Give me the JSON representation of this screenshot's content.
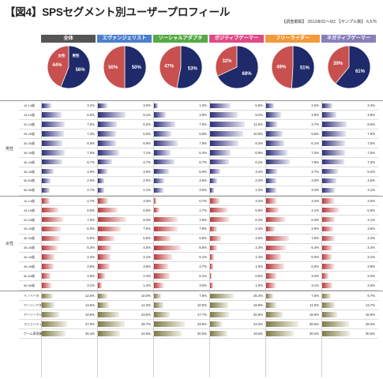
{
  "header": {
    "title": "【図4】SPSセグメント別ユーザープロフィール",
    "survey_info": "【調査期間】 2012/8/31～9/2 【サンプル数】 6,576"
  },
  "chart_data": {
    "type": "bar",
    "segments": [
      {
        "name": "全体",
        "color": "#555555",
        "bar": "#3a3a8c"
      },
      {
        "name": "エヴァンジェリスト",
        "color": "#4d7fcc",
        "bar": "#3a3a8c"
      },
      {
        "name": "ソーシャルアダプタ",
        "color": "#55aa44",
        "bar": "#3a3a8c"
      },
      {
        "name": "ポジティブゲーマー",
        "color": "#e04a86",
        "bar": "#3a3a8c"
      },
      {
        "name": "フリーライダー",
        "color": "#f29a3c",
        "bar": "#3a3a8c"
      },
      {
        "name": "ネガティブゲーマー",
        "color": "#8a7fb9",
        "bar": "#3a3a8c"
      }
    ],
    "pie_labels": {
      "female": "女性",
      "male": "男性"
    },
    "pies": [
      {
        "female": "44%",
        "male": "56%",
        "female_pct": 44
      },
      {
        "female": "50%",
        "male": "50%",
        "female_pct": 50
      },
      {
        "female": "47%",
        "male": "53%",
        "female_pct": 47
      },
      {
        "female": "32%",
        "male": "68%",
        "female_pct": 32
      },
      {
        "female": "49%",
        "male": "51%",
        "female_pct": 49
      },
      {
        "female": "39%",
        "male": "61%",
        "female_pct": 39
      }
    ],
    "groups": [
      {
        "label": "男性",
        "color_dark": "#2e2e7a",
        "color_light": "#e8e8f4",
        "scale_max": 12,
        "rows": [
          {
            "label": "10-14歳",
            "values": [
              "3.2%",
              "3.0%",
              "1.3%",
              "6.8%",
              "2.5%",
              "3.4%"
            ]
          },
          {
            "label": "15-19歳",
            "values": [
              "6.6%",
              "9.1%",
              "3.9%",
              "9.2%",
              "4.9%",
              "4.8%"
            ]
          },
          {
            "label": "20-24歳",
            "values": [
              "7.5%",
              "6.2%",
              "7.0%",
              "11.5%",
              "3.7%",
              "8.0%"
            ]
          },
          {
            "label": "25-29歳",
            "values": [
              "7.3%",
              "6.0%",
              "5.8%",
              "10.9%",
              "5.6%",
              "7.9%"
            ]
          },
          {
            "label": "30-34歳",
            "values": [
              "6.8%",
              "5.9%",
              "7.9%",
              "9.3%",
              "6.1%",
              "7.5%"
            ]
          },
          {
            "label": "35-39歳",
            "values": [
              "7.5%",
              "7.1%",
              "5.4%",
              "6.9%",
              "7.0%",
              "7.5%"
            ]
          },
          {
            "label": "40-44歳",
            "values": [
              "6.7%",
              "4.7%",
              "6.7%",
              "6.2%",
              "7.9%",
              "7.3%"
            ]
          },
          {
            "label": "45-49歳",
            "values": [
              "4.0%",
              "3.0%",
              "5.0%",
              "3.4%",
              "3.7%",
              "5.2%"
            ]
          },
          {
            "label": "50-54歳",
            "values": [
              "2.9%",
              "2.0%",
              "3.5%",
              "2.3%",
              "3.3%",
              "4.6%"
            ]
          },
          {
            "label": "55-59歳",
            "values": [
              "2.7%",
              "2.1%",
              "3.0%",
              "1.3%",
              "3.4%",
              "4.1%"
            ]
          }
        ]
      },
      {
        "label": "女性",
        "color_dark": "#b83a3a",
        "color_light": "#fbe8e8",
        "scale_max": 12,
        "rows": [
          {
            "label": "10-14歳",
            "values": [
              "2.7%",
              "3.3%",
              "0.7%",
              "3.2%",
              "3.4%",
              "4.0%"
            ]
          },
          {
            "label": "15-19歳",
            "values": [
              "5.6%",
              "6.5%",
              "1.7%",
              "5.8%",
              "4.1%",
              "5.6%"
            ]
          },
          {
            "label": "20-24歳",
            "values": [
              "7.0%",
              "9.3%",
              "7.8%",
              "6.2%",
              "6.3%",
              "4.1%"
            ]
          },
          {
            "label": "25-29歳",
            "values": [
              "6.3%",
              "7.6%",
              "7.8%",
              "2.3%",
              "2.9%",
              "3.6%"
            ]
          },
          {
            "label": "30-34歳",
            "values": [
              "5.9%",
              "5.6%",
              "5.6%",
              "3.6%",
              "7.5%",
              "4.2%"
            ]
          },
          {
            "label": "35-39歳",
            "values": [
              "5.3%",
              "4.5%",
              "8.8%",
              "2.3%",
              "6.4%",
              "3.4%"
            ]
          },
          {
            "label": "40-44歳",
            "values": [
              "4.3%",
              "4.1%",
              "6.1%",
              "1.4%",
              "5.0%",
              "3.1%"
            ]
          },
          {
            "label": "45-49歳",
            "values": [
              "3.8%",
              "3.8%",
              "4.7%",
              "1.0%",
              "6.0%",
              "3.9%"
            ]
          },
          {
            "label": "50-54歳",
            "values": [
              "2.8%",
              "2.4%",
              "5.1%",
              "0.5%",
              "3.4%",
              "2.0%"
            ]
          },
          {
            "label": "55-59歳",
            "values": [
              "3.1%",
              "1.4%",
              "3.0%",
              "1.0%",
              "3.1%",
              "3.3%"
            ]
          }
        ]
      },
      {
        "label": "",
        "color_dark": "#7f7a4a",
        "color_light": "#f2f1e6",
        "scale_max": 40,
        "rows": [
          {
            "label": "イノベータ",
            "values": [
              "12.6%",
              "10.0%",
              "7.9%",
              "26.4%",
              "7.5%",
              "9.7%"
            ]
          },
          {
            "label": "アーリーアダプタ",
            "values": [
              "13.6%",
              "12.3%",
              "10.5%",
              "19.9%",
              "11.0%",
              "13.7%"
            ]
          },
          {
            "label": "アーリーマジョリティ",
            "values": [
              "19.5%",
              "23.5%",
              "17.7%",
              "20.9%",
              "18.5%",
              "16.9%"
            ]
          },
          {
            "label": "マジョリティ",
            "values": [
              "27.9%",
              "29.7%",
              "33.9%",
              "13.3%",
              "35.5%",
              "29.3%"
            ]
          },
          {
            "label": "ゲーム専用機非所有者",
            "values": [
              "26.4%",
              "24.5%",
              "30.0%",
              "19.5%",
              "30.2%",
              "30.5%"
            ]
          }
        ]
      }
    ]
  }
}
